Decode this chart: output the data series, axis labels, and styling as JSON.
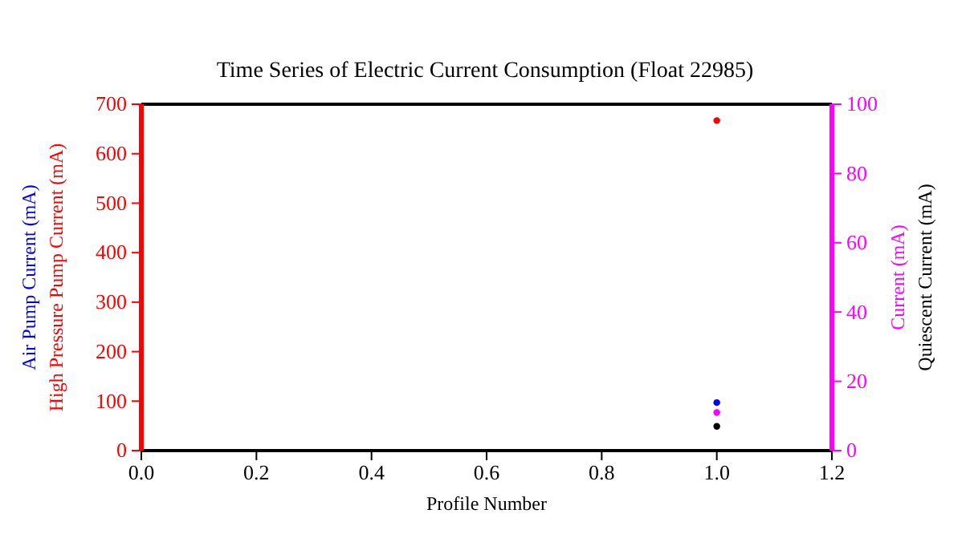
{
  "chart_data": {
    "type": "scatter",
    "title": "Time Series of Electric Current Consumption (Float 22985)",
    "xlabel": "Profile Number",
    "x": [
      1
    ],
    "xlim": [
      0,
      1.2
    ],
    "xticks": [
      {
        "value": 0,
        "label": "0.0"
      },
      {
        "value": 0.2,
        "label": "0.2"
      },
      {
        "value": 0.4,
        "label": "0.4"
      },
      {
        "value": 0.6,
        "label": "0.6"
      },
      {
        "value": 0.8,
        "label": "0.8"
      },
      {
        "value": 1,
        "label": "1.0"
      },
      {
        "value": 1.2,
        "label": "1.2"
      }
    ],
    "ylim": [
      0,
      700
    ],
    "yticks": [
      0,
      100,
      200,
      300,
      400,
      500,
      600,
      700
    ],
    "y2lim": [
      0,
      100
    ],
    "y2ticks": [
      0,
      20,
      40,
      60,
      80,
      100
    ],
    "marker": "circle",
    "series": [
      {
        "name": "Air Pump Current (mA)",
        "color": "#0000ff",
        "values": [
          97
        ]
      },
      {
        "name": "High Pressure Pump Current (mA)",
        "color": "#ff0000",
        "values": [
          667
        ]
      },
      {
        "name": "Current (mA)",
        "color": "#ff00ff",
        "values": [
          11
        ],
        "axis": "y2"
      },
      {
        "name": "Quiescent Current (mA)",
        "color": "#000000",
        "values": [
          7
        ],
        "axis": "y2"
      }
    ]
  }
}
